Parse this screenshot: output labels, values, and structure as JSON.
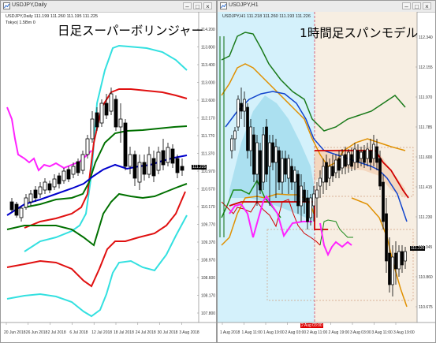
{
  "left_window": {
    "title": "USDJPY,Daily",
    "info_line1": "USDJPY,Daily  111.199 111.260 111.195 111.225",
    "info_line2": "Tokyo|  1.5Bm 0",
    "heading": "日足スーパーボリンジャー",
    "current_price": "111.225",
    "price_axis": [
      "114.200",
      "113.800",
      "113.400",
      "113.000",
      "112.600",
      "112.170",
      "111.770",
      "111.370",
      "110.970",
      "110.570",
      "110.170",
      "109.770",
      "109.370",
      "108.970",
      "108.600",
      "108.170",
      "107.800"
    ],
    "date_axis": [
      "20 Jun 2018",
      "26 Jun 2018",
      "2 Jul 2018",
      "6 Jul 2018",
      "12 Jul 2018",
      "18 Jul 2018",
      "24 Jul 2018",
      "30 Jul 2018",
      "3 Aug 2018"
    ],
    "colors": {
      "upper3": "#33e0e0",
      "upper2": "#e01010",
      "upper1": "#007000",
      "middle": "#0000cc",
      "lower1": "#007000",
      "lower2": "#e01010",
      "lower3": "#33e0e0",
      "lagging": "#ff22ff",
      "candle": "#000000"
    }
  },
  "right_window": {
    "title": "USDJPY,H1",
    "info_line1": "USDJPY,H1  111.218 111.260 111.193 111.226",
    "heading": "1時間足スパンモデル",
    "current_price": "111.226",
    "marker_tag": "2 Aug 03:00",
    "price_axis": [
      "112.340",
      "112.155",
      "111.970",
      "111.785",
      "111.600",
      "111.415",
      "111.230",
      "111.045",
      "110.860",
      "110.675"
    ],
    "date_axis": [
      "1 Aug 2018",
      "1 Aug 11:00",
      "1 Aug 19:00",
      "2 Aug 03:00",
      "2 Aug 11:00",
      "2 Aug 19:00",
      "3 Aug 03:00",
      "3 Aug 11:00",
      "3 Aug 19:00"
    ],
    "colors": {
      "zone_blue": "#d4f1fb",
      "zone_beige": "#f7eee2",
      "upper2": "#1a7a1a",
      "upper1": "#e09000",
      "span_blue": "#1144cc",
      "span_red": "#d00000",
      "lagging": "#ff22ff",
      "dashed": "#d0a080"
    }
  }
}
